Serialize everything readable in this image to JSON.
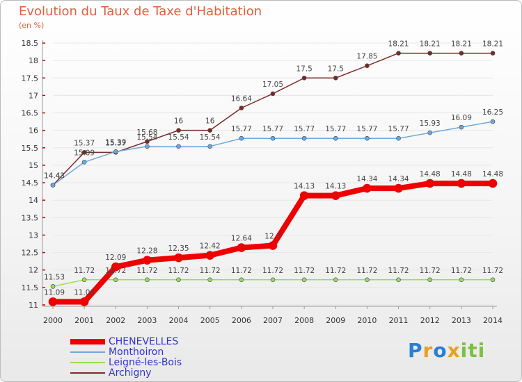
{
  "chart_data": {
    "type": "line",
    "title": "Evolution du Taux de Taxe d'Habitation",
    "subtitle": "(en %)",
    "x": [
      "2000",
      "2001",
      "2002",
      "2003",
      "2004",
      "2005",
      "2006",
      "2007",
      "2008",
      "2009",
      "2010",
      "2011",
      "2012",
      "2013",
      "2014"
    ],
    "ylim": [
      11,
      18.5
    ],
    "yticks": [
      "11",
      "11.5",
      "12",
      "12.5",
      "13",
      "13.5",
      "14",
      "14.5",
      "15",
      "15.5",
      "16",
      "16.5",
      "17",
      "17.5",
      "18",
      "18.5"
    ],
    "legend_position": "bottom-left",
    "series": [
      {
        "name": "CHENEVELLES",
        "color": "#ee0000",
        "values": [
          11.09,
          11.09,
          12.09,
          12.28,
          12.35,
          12.42,
          12.64,
          12.7,
          14.13,
          14.13,
          14.34,
          14.34,
          14.48,
          14.48,
          14.48
        ],
        "labels": [
          "11.09",
          "11.09",
          "12.09",
          "12.28",
          "12.35",
          "12.42",
          "12.64",
          "12.7",
          "14.13",
          "14.13",
          "14.34",
          "14.34",
          "14.48",
          "14.48",
          "14.48"
        ]
      },
      {
        "name": "Monthoiron",
        "color": "#6fa8dc",
        "values": [
          14.43,
          15.09,
          15.39,
          15.54,
          15.54,
          15.54,
          15.77,
          15.77,
          15.77,
          15.77,
          15.77,
          15.77,
          15.93,
          16.09,
          16.25
        ],
        "labels": [
          "14.43",
          "15.09",
          "15.39",
          "15.54",
          "15.54",
          "15.54",
          "15.77",
          "15.77",
          "15.77",
          "15.77",
          "15.77",
          "15.77",
          "15.93",
          "16.09",
          "16.25"
        ]
      },
      {
        "name": "Leigné-les-Bois",
        "color": "#99dd55",
        "values": [
          11.53,
          11.72,
          11.72,
          11.72,
          11.72,
          11.72,
          11.72,
          11.72,
          11.72,
          11.72,
          11.72,
          11.72,
          11.72,
          11.72,
          11.72
        ],
        "labels": [
          "11.53",
          "11.72",
          "11.72",
          "11.72",
          "11.72",
          "11.72",
          "11.72",
          "11.72",
          "11.72",
          "11.72",
          "11.72",
          "11.72",
          "11.72",
          "11.72",
          "11.72"
        ]
      },
      {
        "name": "Archigny",
        "color": "#7a2a2a",
        "values": [
          14.43,
          15.37,
          15.37,
          15.68,
          16,
          16,
          16.64,
          17.05,
          17.5,
          17.5,
          17.85,
          18.21,
          18.21,
          18.21,
          18.21
        ],
        "labels": [
          "14.43",
          "15.37",
          "15.37",
          "15.68",
          "16",
          "16",
          "16.64",
          "17.05",
          "17.5",
          "17.5",
          "17.85",
          "18.21",
          "18.21",
          "18.21",
          "18.21"
        ]
      }
    ]
  },
  "logo": {
    "letters": [
      "P",
      "r",
      "o",
      "x",
      "i",
      "t",
      "i"
    ],
    "colors": [
      "#2a7fd4",
      "#e8a020",
      "#2a7fd4",
      "#e8a020",
      "#7bc043",
      "#7bc043",
      "#7bc043"
    ]
  }
}
